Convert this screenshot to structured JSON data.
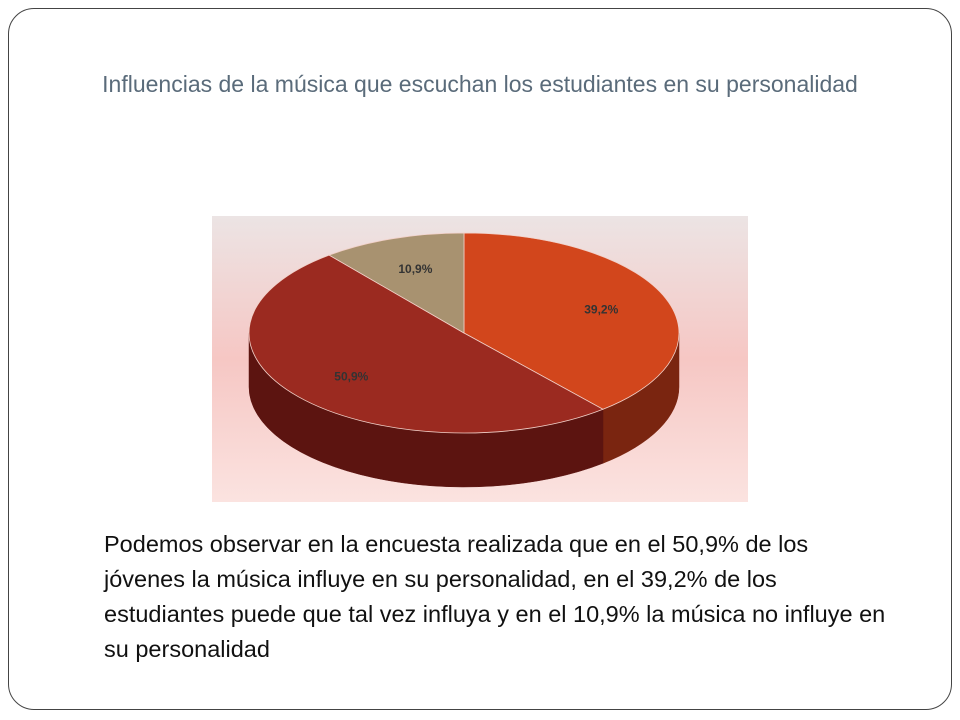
{
  "slide": {
    "title": "Influencias de la música que escuchan los estudiantes en su personalidad",
    "body": "Podemos observar en la encuesta realizada que en el 50,9% de los jóvenes la música influye en su personalidad, en el 39,2% de los estudiantes puede que tal vez influya y en el 10,9% la música no influye en su personalidad"
  },
  "chart_data": {
    "type": "pie",
    "title": "",
    "legend": "none",
    "slices": [
      {
        "label": "39,2%",
        "value": 39.2,
        "color": "#d2461c",
        "side_color": "#7a2510"
      },
      {
        "label": "50,9%",
        "value": 50.9,
        "color": "#9b2a20",
        "side_color": "#5c1410"
      },
      {
        "label": "10,9%",
        "value": 10.9,
        "color": "#a89270",
        "side_color": "#6e5d44"
      }
    ]
  }
}
